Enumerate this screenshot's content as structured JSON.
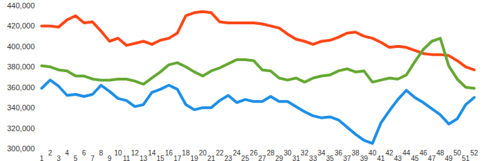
{
  "chart_data": {
    "type": "line",
    "categories": [
      "1",
      "2",
      "3",
      "4",
      "5",
      "6",
      "7",
      "8",
      "9",
      "10",
      "11",
      "12",
      "13",
      "14",
      "15",
      "16",
      "17",
      "18",
      "19",
      "20",
      "21",
      "22",
      "23",
      "24",
      "25",
      "26",
      "27",
      "28",
      "29",
      "30",
      "31",
      "32",
      "33",
      "34",
      "35",
      "36",
      "37",
      "38",
      "39",
      "40",
      "41",
      "42",
      "43",
      "44",
      "45",
      "46",
      "47",
      "48",
      "49",
      "50",
      "51",
      "52"
    ],
    "series": [
      {
        "color": "#ff4616",
        "values": [
          420000,
          420000,
          419000,
          426000,
          430000,
          423000,
          424000,
          415000,
          405000,
          408000,
          401000,
          403000,
          405000,
          402000,
          406000,
          408000,
          413000,
          430000,
          433000,
          434000,
          433000,
          424000,
          423000,
          423000,
          423000,
          423000,
          422000,
          420000,
          418000,
          412000,
          407000,
          405000,
          402000,
          405000,
          406000,
          409000,
          413000,
          414000,
          410000,
          408000,
          404000,
          399000,
          400000,
          399000,
          396000,
          393000,
          392000,
          392000,
          391000,
          386000,
          380000,
          377000
        ]
      },
      {
        "color": "#65a832",
        "values": [
          381000,
          380000,
          377000,
          376000,
          371000,
          371000,
          368000,
          367000,
          367000,
          368000,
          368000,
          366000,
          363000,
          369000,
          375000,
          382000,
          384000,
          380000,
          375000,
          371000,
          376000,
          379000,
          383000,
          387000,
          387000,
          386000,
          377000,
          376000,
          369000,
          367000,
          369000,
          365000,
          369000,
          371000,
          372000,
          376000,
          378000,
          375000,
          376000,
          365000,
          367000,
          369000,
          368000,
          372000,
          385000,
          397000,
          405000,
          408000,
          381000,
          368000,
          360000,
          359000
        ]
      },
      {
        "color": "#1e8fe6",
        "values": [
          359000,
          367000,
          361000,
          352000,
          353000,
          351000,
          353000,
          362000,
          356000,
          349000,
          347000,
          341000,
          343000,
          355000,
          358000,
          362000,
          358000,
          343000,
          338000,
          340000,
          340000,
          347000,
          352000,
          345000,
          348000,
          346000,
          346000,
          351000,
          346000,
          346000,
          341000,
          336000,
          332000,
          330000,
          331000,
          328000,
          321000,
          314000,
          308000,
          305000,
          325000,
          337000,
          348000,
          357000,
          350000,
          345000,
          339000,
          333000,
          324000,
          329000,
          343000,
          350000
        ]
      }
    ],
    "ylim": [
      300000,
      440000
    ],
    "yticks": [
      {
        "value": 300000,
        "label": "300,000"
      },
      {
        "value": 320000,
        "label": "320,000"
      },
      {
        "value": 340000,
        "label": "340,000"
      },
      {
        "value": 360000,
        "label": "360,000"
      },
      {
        "value": 380000,
        "label": "380,000"
      },
      {
        "value": 400000,
        "label": "400,000"
      },
      {
        "value": 420000,
        "label": "420,000"
      },
      {
        "value": 440000,
        "label": "440,000"
      }
    ],
    "grid": false
  }
}
